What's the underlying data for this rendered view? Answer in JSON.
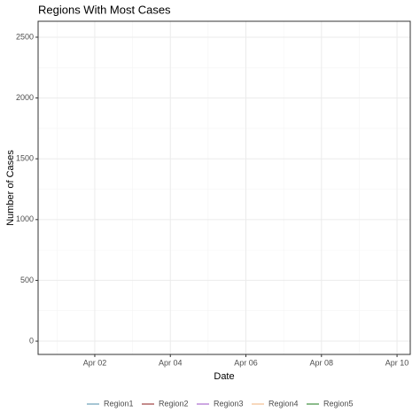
{
  "chart_data": {
    "type": "line",
    "title": "Regions With Most Cases",
    "x_label": "Date",
    "y_label": "Number of Cases",
    "x": [],
    "series": [
      {
        "name": "Region1",
        "color": "#4e8ea8",
        "values": []
      },
      {
        "name": "Region2",
        "color": "#8b1a1a",
        "values": []
      },
      {
        "name": "Region3",
        "color": "#9b4fc4",
        "values": []
      },
      {
        "name": "Region4",
        "color": "#f0b07a",
        "values": []
      },
      {
        "name": "Region5",
        "color": "#1a7a1a",
        "values": []
      }
    ],
    "xlim": [
      0.5,
      10.35
    ],
    "xticks": [
      {
        "value": 2,
        "label": "Apr 02"
      },
      {
        "value": 4,
        "label": "Apr 04"
      },
      {
        "value": 6,
        "label": "Apr 06"
      },
      {
        "value": 8,
        "label": "Apr 08"
      },
      {
        "value": 10,
        "label": "Apr 10"
      }
    ],
    "ylim": [
      -109,
      2631
    ],
    "yticks": [
      0,
      500,
      1000,
      1500,
      2000,
      2500
    ],
    "grid": true,
    "legend": "bottom"
  }
}
